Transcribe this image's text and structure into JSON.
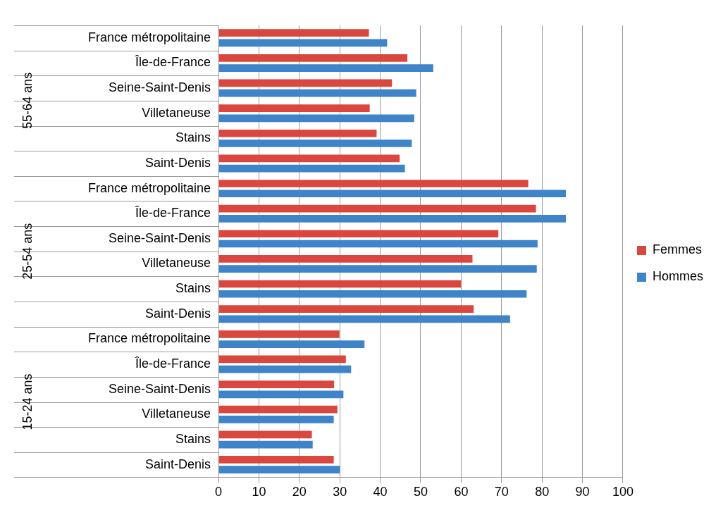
{
  "chart_data": {
    "type": "bar",
    "orientation": "horizontal",
    "categories": [
      "France métropolitaine",
      "Île-de-France",
      "Seine-Saint-Denis",
      "Villetaneuse",
      "Stains",
      "Saint-Denis",
      "France métropolitaine",
      "Île-de-France",
      "Seine-Saint-Denis",
      "Villetaneuse",
      "Stains",
      "Saint-Denis",
      "France métropolitaine",
      "Île-de-France",
      "Seine-Saint-Denis",
      "Villetaneuse",
      "Stains",
      "Saint-Denis"
    ],
    "series": [
      {
        "name": "Femmes",
        "color": "#d9473f",
        "values": [
          37.2,
          46.7,
          42.9,
          37.4,
          39.1,
          44.8,
          76.6,
          78.5,
          69.2,
          62.8,
          60.0,
          63.1,
          29.9,
          31.5,
          28.6,
          29.4,
          23.1,
          28.5
        ]
      },
      {
        "name": "Hommes",
        "color": "#3f83c9",
        "values": [
          41.7,
          53.1,
          48.9,
          48.4,
          47.8,
          46.1,
          85.9,
          85.9,
          78.9,
          78.7,
          76.2,
          72.1,
          36.1,
          32.8,
          30.9,
          28.5,
          23.3,
          30.0
        ]
      }
    ],
    "annotations": [
      "55-64 ans",
      "25-54 ans",
      "15-24 ans"
    ],
    "xlim": [
      0,
      100
    ],
    "xticks": [
      0,
      10,
      20,
      30,
      40,
      50,
      60,
      70,
      80,
      90,
      100
    ],
    "grid": "x",
    "legend": "right"
  }
}
